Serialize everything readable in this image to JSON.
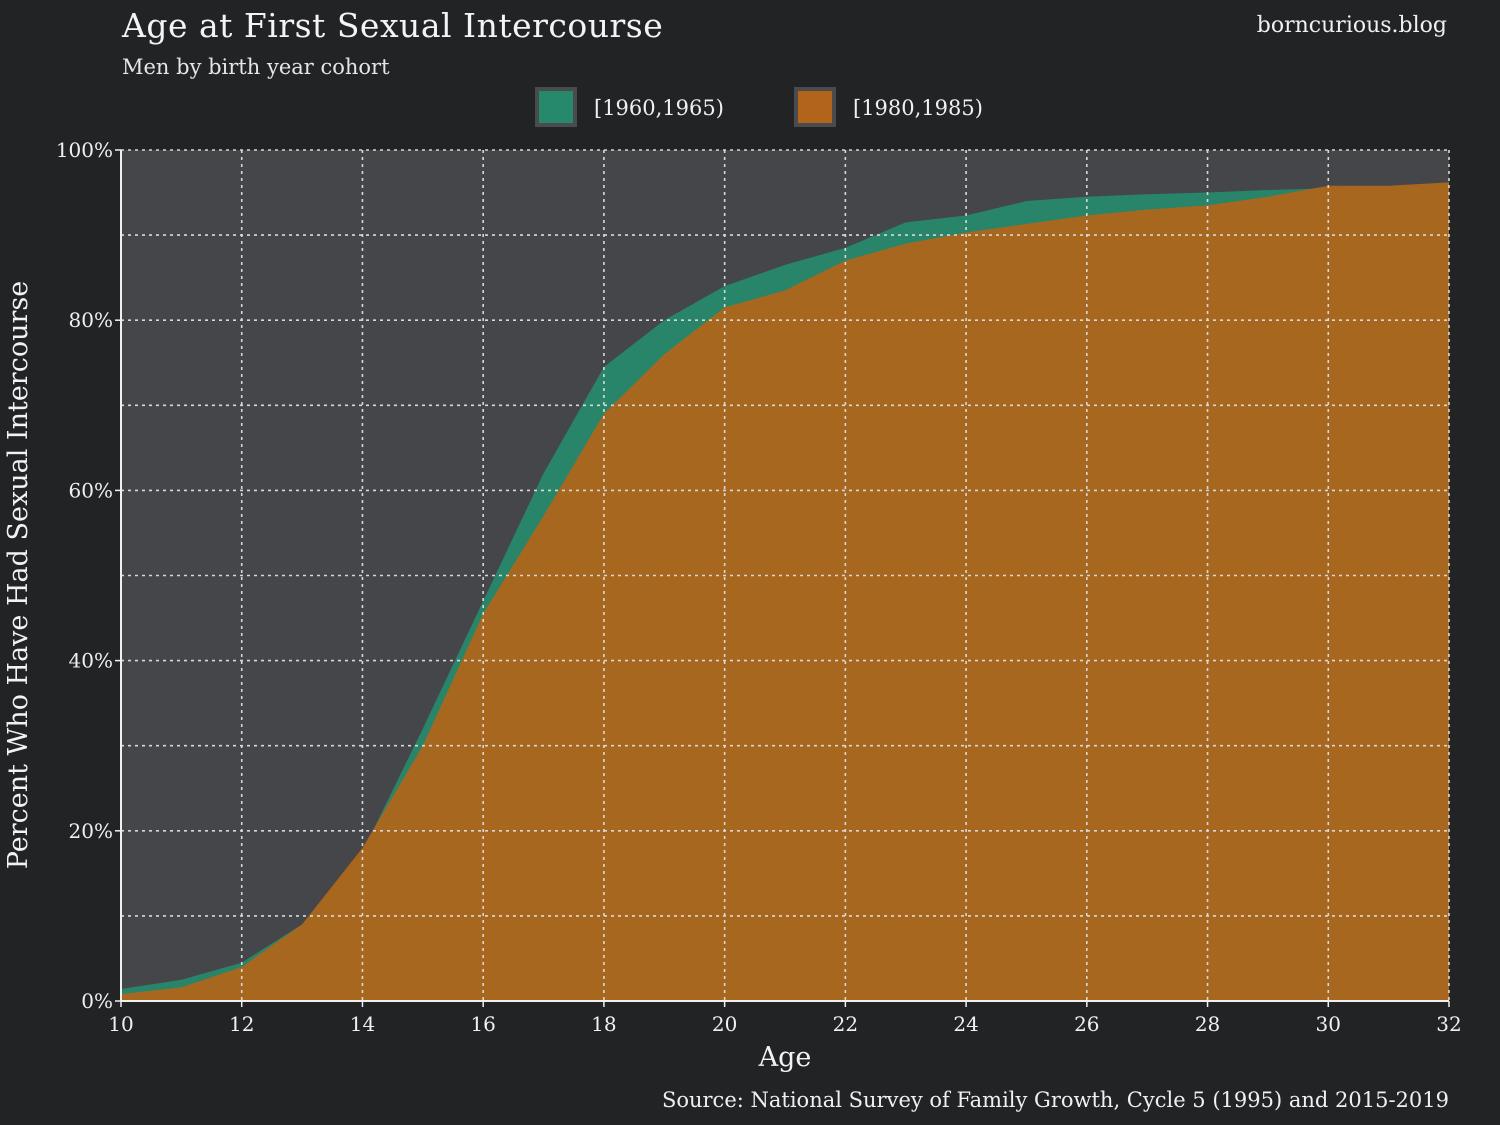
{
  "header": {
    "title": "Age at First Sexual Intercourse",
    "subtitle": "Men by birth year cohort",
    "brand": "borncurious.blog"
  },
  "footer": {
    "source": "Source: National Survey of Family Growth, Cycle 5 (1995) and 2015-2019"
  },
  "colors": {
    "background": "#222325",
    "plot_background": "#454649",
    "series_1960": "#27896b",
    "series_1980": "#b2651a"
  },
  "chart_data": {
    "type": "area",
    "title": "Age at First Sexual Intercourse",
    "subtitle": "Men by birth year cohort",
    "xlabel": "Age",
    "ylabel": "Percent Who Have Had Sexual Intercourse",
    "xlim": [
      10,
      32
    ],
    "ylim": [
      0,
      100
    ],
    "x_ticks": [
      10,
      12,
      14,
      16,
      18,
      20,
      22,
      24,
      26,
      28,
      30,
      32
    ],
    "x_tick_labels": [
      "10",
      "12",
      "14",
      "16",
      "18",
      "20",
      "22",
      "24",
      "26",
      "28",
      "30",
      "32"
    ],
    "y_ticks": [
      0,
      20,
      40,
      60,
      80,
      100
    ],
    "y_tick_labels": [
      "0%",
      "20%",
      "40%",
      "60%",
      "80%",
      "100%"
    ],
    "y_minor_gridlines": [
      10,
      30,
      50,
      70,
      90
    ],
    "grid": true,
    "legend_position": "top-center",
    "x": [
      10,
      11,
      12,
      13,
      14,
      15,
      16,
      17,
      18,
      19,
      20,
      21,
      22,
      23,
      24,
      25,
      26,
      27,
      28,
      29,
      30,
      31,
      32
    ],
    "series": [
      {
        "name": "[1960,1965)",
        "color": "#27896b",
        "values": [
          1.4,
          2.5,
          4.5,
          9.0,
          17.5,
          32.0,
          47.0,
          62.0,
          74.5,
          80.0,
          84.0,
          86.5,
          88.5,
          91.5,
          92.3,
          94.0,
          94.5,
          94.8,
          95.0,
          95.3,
          95.5,
          95.7,
          96.2
        ]
      },
      {
        "name": "[1980,1985)",
        "color": "#b2651a",
        "values": [
          0.8,
          1.6,
          4.0,
          9.0,
          18.0,
          30.0,
          45.5,
          57.0,
          69.0,
          76.0,
          81.5,
          83.5,
          87.0,
          89.0,
          90.3,
          91.3,
          92.3,
          93.0,
          93.5,
          94.5,
          95.8,
          95.8,
          96.2
        ]
      }
    ]
  }
}
